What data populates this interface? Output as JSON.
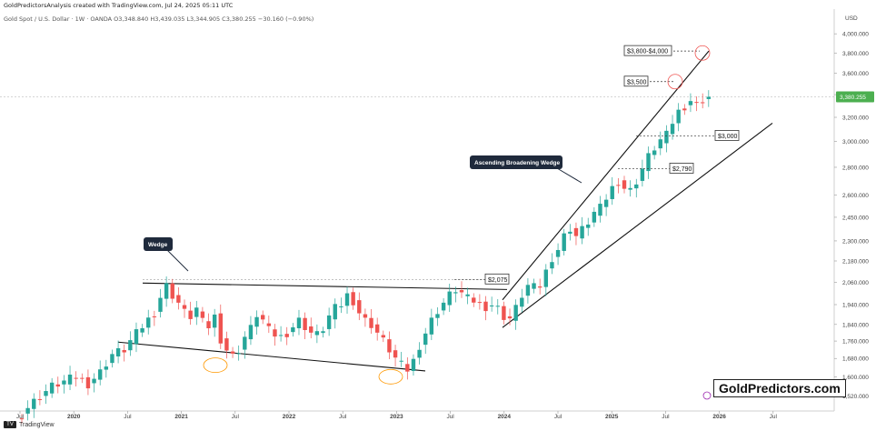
{
  "header": {
    "attribution": "GoldPredictorsAnalysis created with TradingView.com, Jul 24, 2025 05:11 UTC",
    "symbol_line": "Gold Spot / U.S. Dollar · 1W · OANDA  O3,348.840  H3,439.035  L3,344.905  C3,380.255  −30.160 (−0.90%)"
  },
  "footer": {
    "logo_text": "TV",
    "brand": "TradingView"
  },
  "watermark": "GoldPredictors.com",
  "colors": {
    "up": "#26a69a",
    "down": "#ef5350",
    "price_tag": "#4caf50",
    "line": "#111111",
    "circle_red": "#ef5350",
    "circle_orange": "#ff9800",
    "callout_bg": "#1f2a3c"
  },
  "chart_data": {
    "type": "candlestick",
    "currency_label": "USD",
    "y_scale": "log",
    "ylim": [
      1460,
      4120
    ],
    "y_ticks": [
      4000,
      3800,
      3600,
      3400,
      3200,
      3000,
      2800,
      2600,
      2450,
      2300,
      2180,
      2060,
      1940,
      1840,
      1760,
      1680,
      1600,
      1520
    ],
    "y_tick_labels": [
      "4,000.000",
      "3,800.000",
      "3,600.000",
      "3,400.000",
      "3,200.000",
      "3,000.000",
      "2,800.000",
      "2,600.000",
      "2,450.000",
      "2,300.000",
      "2,180.000",
      "2,060.000",
      "1,940.000",
      "1,840.000",
      "1,760.000",
      "1,680.000",
      "1,600.000",
      "1,520.000"
    ],
    "x_tick_labels": [
      "Jul",
      "2020",
      "Jul",
      "2021",
      "Jul",
      "2022",
      "Jul",
      "2023",
      "Jul",
      "2024",
      "Jul",
      "2025",
      "Jul",
      "2026",
      "Jul"
    ],
    "last_price": 3380.255,
    "last_price_label": "3,380.255",
    "price_path": [
      [
        0,
        1420
      ],
      [
        2,
        1475
      ],
      [
        4,
        1520
      ],
      [
        6,
        1560
      ],
      [
        8,
        1580
      ],
      [
        10,
        1600
      ],
      [
        12,
        1570
      ],
      [
        14,
        1620
      ],
      [
        16,
        1700
      ],
      [
        18,
        1720
      ],
      [
        19,
        1760
      ],
      [
        21,
        1830
      ],
      [
        23,
        1900
      ],
      [
        24,
        1980
      ],
      [
        25,
        2040
      ],
      [
        26,
        1990
      ],
      [
        27,
        1950
      ],
      [
        28,
        1900
      ],
      [
        29,
        1880
      ],
      [
        30,
        1920
      ],
      [
        31,
        1850
      ],
      [
        32,
        1830
      ],
      [
        33,
        1880
      ],
      [
        34,
        1770
      ],
      [
        35,
        1720
      ],
      [
        36,
        1690
      ],
      [
        37,
        1720
      ],
      [
        38,
        1780
      ],
      [
        39,
        1820
      ],
      [
        40,
        1890
      ],
      [
        41,
        1860
      ],
      [
        42,
        1810
      ],
      [
        43,
        1790
      ],
      [
        44,
        1780
      ],
      [
        45,
        1800
      ],
      [
        46,
        1830
      ],
      [
        47,
        1860
      ],
      [
        48,
        1830
      ],
      [
        49,
        1800
      ],
      [
        50,
        1790
      ],
      [
        51,
        1820
      ],
      [
        52,
        1880
      ],
      [
        53,
        1920
      ],
      [
        54,
        1940
      ],
      [
        55,
        1990
      ],
      [
        56,
        1960
      ],
      [
        57,
        1900
      ],
      [
        58,
        1860
      ],
      [
        59,
        1840
      ],
      [
        60,
        1800
      ],
      [
        61,
        1760
      ],
      [
        62,
        1720
      ],
      [
        63,
        1680
      ],
      [
        64,
        1650
      ],
      [
        65,
        1630
      ],
      [
        66,
        1670
      ],
      [
        67,
        1740
      ],
      [
        68,
        1800
      ],
      [
        69,
        1860
      ],
      [
        70,
        1910
      ],
      [
        71,
        1950
      ],
      [
        72,
        1990
      ],
      [
        73,
        2020
      ],
      [
        74,
        2000
      ],
      [
        75,
        1970
      ],
      [
        76,
        1960
      ],
      [
        77,
        1940
      ],
      [
        78,
        1930
      ],
      [
        79,
        1940
      ],
      [
        80,
        1920
      ],
      [
        81,
        1880
      ],
      [
        82,
        1870
      ],
      [
        83,
        1920
      ],
      [
        84,
        1990
      ],
      [
        85,
        2040
      ],
      [
        86,
        2030
      ],
      [
        87,
        2040
      ],
      [
        88,
        2120
      ],
      [
        89,
        2200
      ],
      [
        90,
        2250
      ],
      [
        91,
        2330
      ],
      [
        92,
        2380
      ],
      [
        93,
        2330
      ],
      [
        94,
        2370
      ],
      [
        95,
        2420
      ],
      [
        96,
        2480
      ],
      [
        97,
        2510
      ],
      [
        98,
        2580
      ],
      [
        99,
        2650
      ],
      [
        100,
        2700
      ],
      [
        101,
        2650
      ],
      [
        102,
        2630
      ],
      [
        103,
        2700
      ],
      [
        104,
        2790
      ],
      [
        105,
        2880
      ],
      [
        106,
        2950
      ],
      [
        107,
        3010
      ],
      [
        108,
        3050
      ],
      [
        109,
        3160
      ],
      [
        110,
        3250
      ],
      [
        111,
        3300
      ],
      [
        112,
        3350
      ],
      [
        113,
        3310
      ],
      [
        114,
        3360
      ],
      [
        115,
        3380
      ]
    ],
    "levels": [
      {
        "label": "$3,800-$4,000",
        "value": 3820
      },
      {
        "label": "$3,500",
        "value": 3520
      },
      {
        "label": "$3,000",
        "value": 3045
      },
      {
        "label": "$2,790",
        "value": 2790
      },
      {
        "label": "$2,075",
        "value": 2075
      }
    ],
    "annotations": [
      {
        "text": "Wedge"
      },
      {
        "text": "Ascending Broadening Wedge"
      }
    ]
  }
}
